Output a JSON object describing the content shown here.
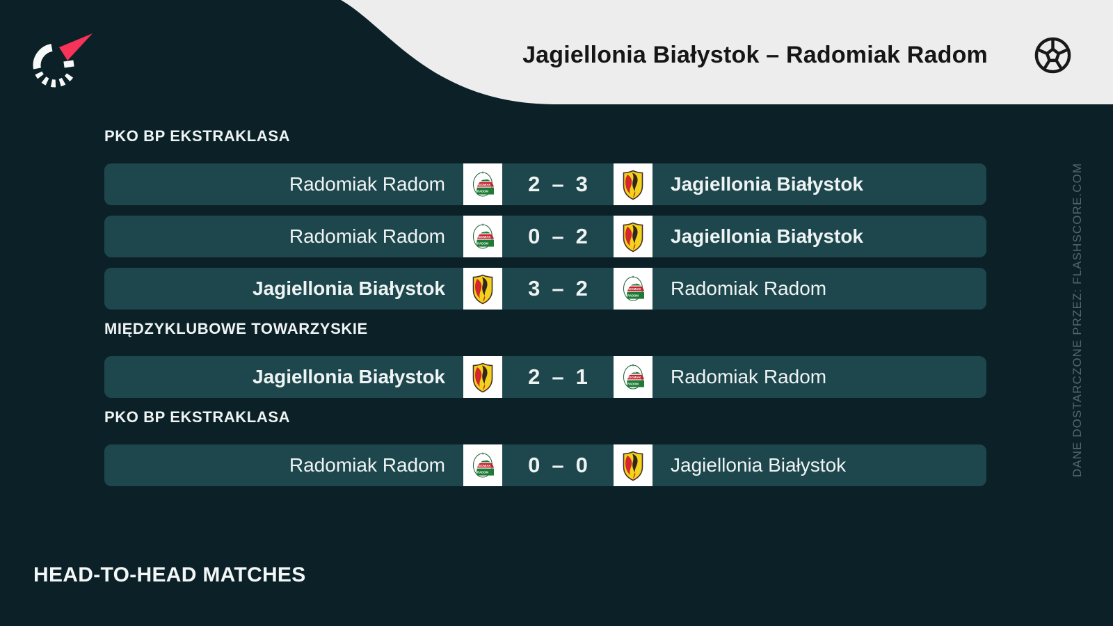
{
  "header": {
    "title": "Jagiellonia Białystok – Radomiak Radom",
    "brand_icon": "flashscore-spinner-logo",
    "sport_icon": "football-icon"
  },
  "sections": [
    {
      "label": "PKO BP EKSTRAKLASA",
      "matches": [
        {
          "home": "Radomiak Radom",
          "home_logo": "radomiak-radom-crest",
          "home_score": "2",
          "separator": "–",
          "away_score": "3",
          "away": "Jagiellonia Białystok",
          "away_logo": "jagiellonia-bialystok-crest",
          "winner": "away"
        },
        {
          "home": "Radomiak Radom",
          "home_logo": "radomiak-radom-crest",
          "home_score": "0",
          "separator": "–",
          "away_score": "2",
          "away": "Jagiellonia Białystok",
          "away_logo": "jagiellonia-bialystok-crest",
          "winner": "away"
        },
        {
          "home": "Jagiellonia Białystok",
          "home_logo": "jagiellonia-bialystok-crest",
          "home_score": "3",
          "separator": "–",
          "away_score": "2",
          "away": "Radomiak Radom",
          "away_logo": "radomiak-radom-crest",
          "winner": "home"
        }
      ]
    },
    {
      "label": "MIĘDZYKLUBOWE TOWARZYSKIE",
      "matches": [
        {
          "home": "Jagiellonia Białystok",
          "home_logo": "jagiellonia-bialystok-crest",
          "home_score": "2",
          "separator": "–",
          "away_score": "1",
          "away": "Radomiak Radom",
          "away_logo": "radomiak-radom-crest",
          "winner": "home"
        }
      ]
    },
    {
      "label": "PKO BP EKSTRAKLASA",
      "matches": [
        {
          "home": "Radomiak Radom",
          "home_logo": "radomiak-radom-crest",
          "home_score": "0",
          "separator": "–",
          "away_score": "0",
          "away": "Jagiellonia Białystok",
          "away_logo": "jagiellonia-bialystok-crest",
          "winner": "none"
        }
      ]
    }
  ],
  "footer": {
    "heading": "HEAD-TO-HEAD MATCHES"
  },
  "attribution": "DANE DOSTARCZONE PRZEZ: FLASHSCORE.COM",
  "colors": {
    "background": "#0c2127",
    "row": "#1e474d",
    "light_panel": "#ededed",
    "accent_red": "#f8335a",
    "muted_text": "#51686e",
    "row_text": "#eef3f3"
  }
}
